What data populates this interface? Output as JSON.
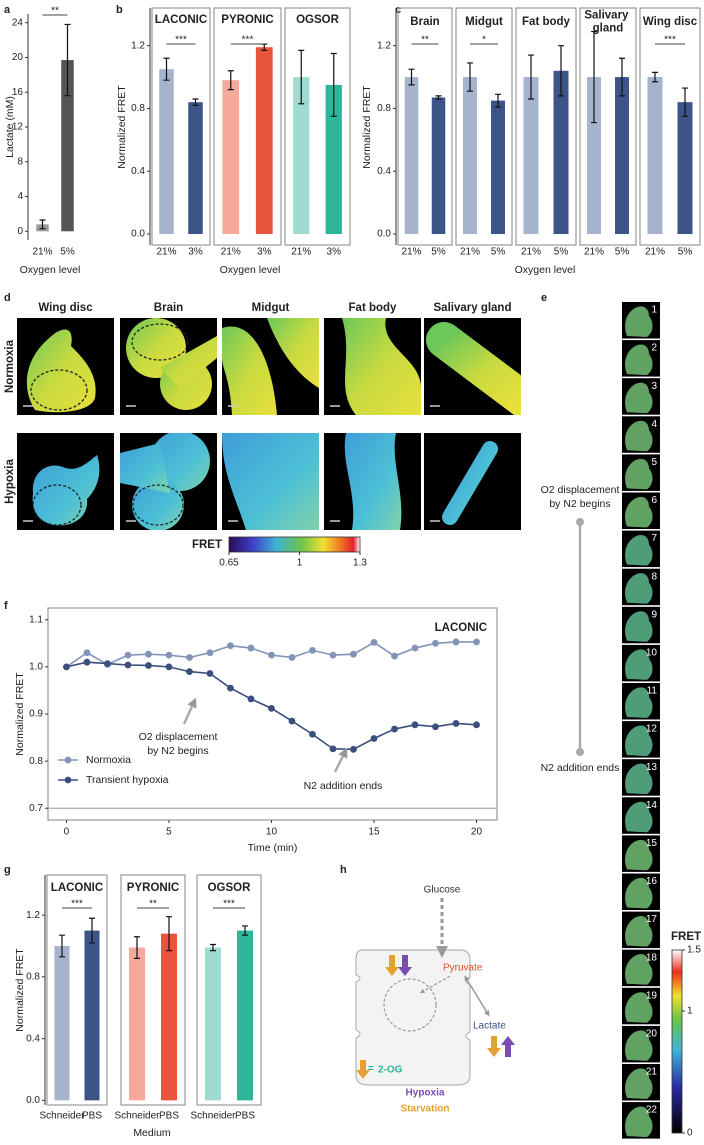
{
  "chart_data": [
    {
      "type": "bar",
      "panel": "a",
      "ylabel": "Lactate (mM)",
      "xlabel": "Oxygen level",
      "categories": [
        "21%",
        "5%"
      ],
      "values": [
        0.8,
        19.7
      ],
      "errors": [
        0.5,
        4.1
      ],
      "colors": [
        "#9a9a9a",
        "#555555"
      ],
      "significance": "**",
      "ylim": [
        -1,
        25
      ],
      "yticks": [
        0,
        4,
        8,
        12,
        16,
        20,
        24
      ]
    },
    {
      "type": "facet-bar",
      "panel": "b",
      "ylabel": "Normalized FRET",
      "xlabel": "Oxygen level",
      "ylim": [
        -0.07,
        1.44
      ],
      "yticks": [
        {
          "value": 0,
          "label": "0.0"
        },
        0.4,
        0.8,
        1.2
      ],
      "facets": [
        {
          "title": "LACONIC",
          "categories": [
            "21%",
            "3%"
          ],
          "values": [
            1.05,
            0.84
          ],
          "errors": [
            0.07,
            0.02
          ],
          "colors": [
            "#a5b3cc",
            "#3c5488"
          ],
          "significance": "***"
        },
        {
          "title": "PYRONIC",
          "categories": [
            "21%",
            "3%"
          ],
          "values": [
            0.98,
            1.19
          ],
          "errors": [
            0.06,
            0.02
          ],
          "colors": [
            "#f4a99a",
            "#e8553a"
          ],
          "significance": "***"
        },
        {
          "title": "OGSOR",
          "categories": [
            "21%",
            "3%"
          ],
          "values": [
            1.0,
            0.95
          ],
          "errors": [
            0.17,
            0.2
          ],
          "colors": [
            "#9fdccf",
            "#2eb59a"
          ]
        }
      ]
    },
    {
      "type": "facet-bar",
      "panel": "c",
      "ylabel": "Normalized FRET",
      "xlabel": "Oxygen level",
      "ylim": [
        -0.07,
        1.44
      ],
      "yticks": [
        {
          "value": 0,
          "label": "0.0"
        },
        0.4,
        0.8,
        1.2
      ],
      "facets": [
        {
          "title": "Brain",
          "categories": [
            "21%",
            "5%"
          ],
          "values": [
            1.0,
            0.87
          ],
          "errors": [
            0.05,
            0.01
          ],
          "colors": [
            "#a5b3cc",
            "#3c5488"
          ],
          "significance": "**"
        },
        {
          "title": "Midgut",
          "categories": [
            "21%",
            "5%"
          ],
          "values": [
            1.0,
            0.85
          ],
          "errors": [
            0.09,
            0.04
          ],
          "colors": [
            "#a5b3cc",
            "#3c5488"
          ],
          "significance": "*"
        },
        {
          "title": "Fat body",
          "categories": [
            "21%",
            "5%"
          ],
          "values": [
            1.0,
            1.04
          ],
          "errors": [
            0.14,
            0.16
          ],
          "colors": [
            "#a5b3cc",
            "#3c5488"
          ]
        },
        {
          "title": "Salivary gland",
          "categories": [
            "21%",
            "5%"
          ],
          "values": [
            1.0,
            1.0
          ],
          "errors": [
            0.29,
            0.12
          ],
          "colors": [
            "#a5b3cc",
            "#3c5488"
          ]
        },
        {
          "title": "Wing disc",
          "categories": [
            "21%",
            "5%"
          ],
          "values": [
            1.0,
            0.84
          ],
          "errors": [
            0.03,
            0.09
          ],
          "colors": [
            "#a5b3cc",
            "#3c5488"
          ],
          "significance": "***"
        }
      ]
    },
    {
      "type": "line",
      "panel": "f",
      "title": "LACONIC",
      "xlabel": "Time (min)",
      "ylabel": "Normalized FRET",
      "x": [
        0,
        1,
        2,
        3,
        4,
        5,
        6,
        7,
        8,
        9,
        10,
        11,
        12,
        13,
        14,
        15,
        16,
        17,
        18,
        19,
        20
      ],
      "series": [
        {
          "name": "Normoxia",
          "color": "#8393b8",
          "values": [
            1.0,
            1.03,
            1.005,
            1.025,
            1.027,
            1.025,
            1.02,
            1.03,
            1.045,
            1.04,
            1.025,
            1.02,
            1.035,
            1.025,
            1.027,
            1.052,
            1.023,
            1.04,
            1.05,
            1.053,
            1.053
          ]
        },
        {
          "name": "Transient hypoxia",
          "color": "#3a4f7e",
          "values": [
            1.0,
            1.01,
            1.007,
            1.004,
            1.003,
            1.0,
            0.99,
            0.986,
            0.955,
            0.932,
            0.912,
            0.885,
            0.857,
            0.826,
            0.825,
            0.848,
            0.868,
            0.877,
            0.873,
            0.88,
            0.877
          ]
        }
      ],
      "annotations": [
        [
          "O2 displacement",
          "by N2 begins"
        ],
        [
          "N2 addition ends"
        ]
      ],
      "legend": "lower left",
      "xlim": [
        -0.9,
        21
      ],
      "ylim": [
        0.675,
        1.125
      ],
      "xticks": [
        0,
        5,
        10,
        15,
        20
      ],
      "yticks": [
        0.7,
        0.8,
        0.9,
        {
          "value": 1,
          "label": "1.0"
        },
        1.1
      ]
    },
    {
      "type": "facet-bar",
      "panel": "g",
      "ylabel": "Normalized FRET",
      "xlabel": "Medium",
      "ylim": [
        -0.03,
        1.46
      ],
      "yticks": [
        {
          "value": 0,
          "label": "0.0"
        },
        0.4,
        0.8,
        1.2
      ],
      "facets": [
        {
          "title": "LACONIC",
          "categories": [
            "Schneider",
            "PBS"
          ],
          "values": [
            1.0,
            1.1
          ],
          "errors": [
            0.07,
            0.08
          ],
          "colors": [
            "#a5b3cc",
            "#3c5488"
          ],
          "significance": "***"
        },
        {
          "title": "PYRONIC",
          "categories": [
            "Schneider",
            "PBS"
          ],
          "values": [
            0.99,
            1.08
          ],
          "errors": [
            0.07,
            0.11
          ],
          "colors": [
            "#f4a99a",
            "#e8553a"
          ],
          "significance": "**"
        },
        {
          "title": "OGSOR",
          "categories": [
            "Schneider",
            "PBS"
          ],
          "values": [
            0.99,
            1.1
          ],
          "errors": [
            0.02,
            0.03
          ],
          "colors": [
            "#9fdccf",
            "#2eb59a"
          ],
          "significance": "***"
        }
      ]
    }
  ],
  "microscopy": {
    "panel": "d",
    "columns": [
      "Wing disc",
      "Brain",
      "Midgut",
      "Fat body",
      "Salivary gland"
    ],
    "rows": [
      "Normoxia",
      "Hypoxia"
    ],
    "colorbar": {
      "label": "FRET",
      "lim": [
        0.65,
        1.3
      ],
      "ticks": [
        0.65,
        1,
        1.3
      ]
    }
  },
  "timelapse": {
    "panel": "e",
    "frames": [
      1,
      2,
      3,
      4,
      5,
      6,
      7,
      8,
      9,
      10,
      11,
      12,
      13,
      14,
      15,
      16,
      17,
      18,
      19,
      20,
      21,
      22
    ],
    "annotations": [
      [
        "O2 displacement",
        "by N2 begins"
      ],
      [
        "N2 addition ends"
      ]
    ],
    "colorbar": {
      "label": "FRET",
      "lim": [
        0,
        1.5
      ],
      "ticks": [
        0,
        1,
        1.5
      ]
    }
  },
  "diagram": {
    "panel": "h",
    "nodes": [
      "Glucose",
      "Pyruvate",
      "Lactate",
      "2-OG"
    ],
    "equals": "=",
    "legend": [
      "Hypoxia",
      "Starvation"
    ]
  }
}
